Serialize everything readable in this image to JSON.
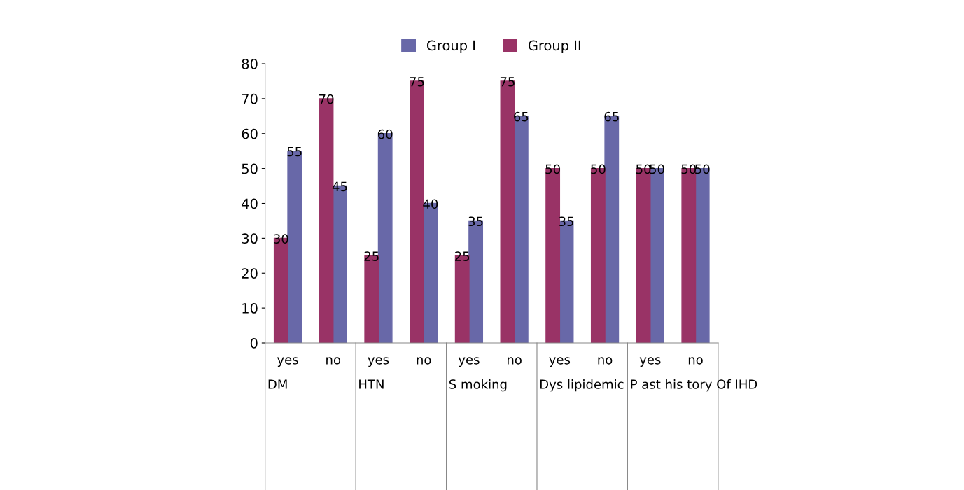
{
  "chart_data": {
    "type": "bar",
    "categories": [
      "yes",
      "no",
      "yes",
      "no",
      "yes",
      "no",
      "yes",
      "no",
      "yes",
      "no"
    ],
    "series": [
      {
        "name": "Group I",
        "color": "#6868a8",
        "values": [
          55,
          45,
          60,
          40,
          35,
          65,
          35,
          65,
          50,
          50
        ]
      },
      {
        "name": "Group II",
        "color": "#993366",
        "values": [
          30,
          70,
          25,
          75,
          25,
          75,
          50,
          50,
          50,
          50
        ]
      }
    ],
    "annotations": [
      "DM",
      "HTN",
      "S moking",
      "Dys lipidemic",
      "P ast his tory Of IHD"
    ],
    "ylim": [
      0,
      80
    ],
    "yticks": [
      0,
      10,
      20,
      30,
      40,
      50,
      60,
      70,
      80
    ],
    "data_labels": true,
    "legend": "top",
    "grid": false
  }
}
